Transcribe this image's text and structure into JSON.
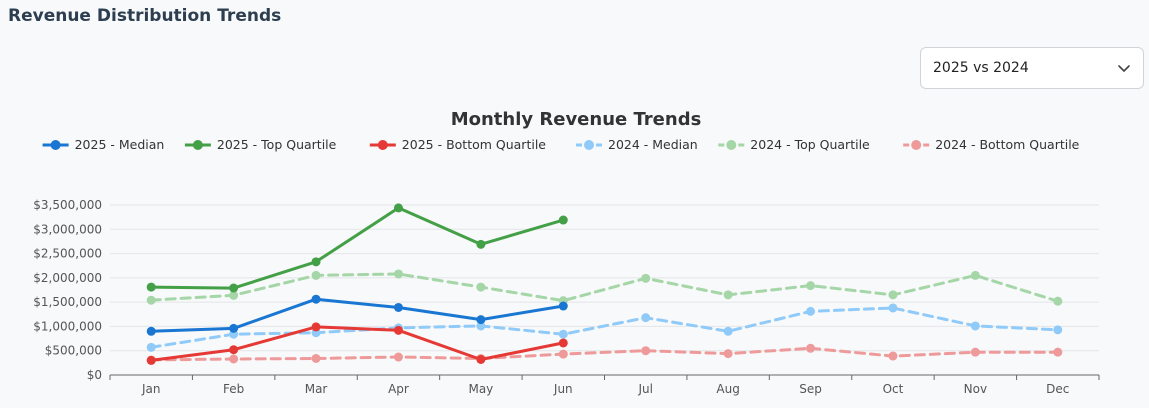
{
  "page": {
    "title": "Revenue Distribution Trends"
  },
  "comparison_select": {
    "value": "2025 vs 2024",
    "icon": "chevron-down-icon"
  },
  "chart_data": {
    "type": "line",
    "title": "Monthly Revenue Trends",
    "categories": [
      "Jan",
      "Feb",
      "Mar",
      "Apr",
      "May",
      "Jun",
      "Jul",
      "Aug",
      "Sep",
      "Oct",
      "Nov",
      "Dec"
    ],
    "ylim": [
      0,
      3500000
    ],
    "yticks": [
      0,
      500000,
      1000000,
      1500000,
      2000000,
      2500000,
      3000000,
      3500000
    ],
    "ytick_labels": [
      "$0",
      "$500,000",
      "$1,000,000",
      "$1,500,000",
      "$2,000,000",
      "$2,500,000",
      "$3,000,000",
      "$3,500,000"
    ],
    "grid": true,
    "legend_position": "top-center",
    "series": [
      {
        "name": "2025 - Median",
        "color": "#1976d2",
        "dashed": false,
        "values": [
          900000,
          960000,
          1560000,
          1390000,
          1140000,
          1420000,
          null,
          null,
          null,
          null,
          null,
          null
        ]
      },
      {
        "name": "2025 - Top Quartile",
        "color": "#43a047",
        "dashed": false,
        "values": [
          1810000,
          1790000,
          2330000,
          3440000,
          2690000,
          3190000,
          null,
          null,
          null,
          null,
          null,
          null
        ]
      },
      {
        "name": "2025 - Bottom Quartile",
        "color": "#e53935",
        "dashed": false,
        "values": [
          300000,
          520000,
          990000,
          920000,
          320000,
          660000,
          null,
          null,
          null,
          null,
          null,
          null
        ]
      },
      {
        "name": "2024 - Median",
        "color": "#90caf9",
        "dashed": true,
        "values": [
          570000,
          840000,
          870000,
          970000,
          1010000,
          840000,
          1180000,
          900000,
          1310000,
          1380000,
          1010000,
          930000
        ]
      },
      {
        "name": "2024 - Top Quartile",
        "color": "#a5d6a7",
        "dashed": true,
        "values": [
          1540000,
          1640000,
          2050000,
          2080000,
          1810000,
          1530000,
          1990000,
          1650000,
          1840000,
          1650000,
          2050000,
          1520000
        ]
      },
      {
        "name": "2024 - Bottom Quartile",
        "color": "#ef9a9a",
        "dashed": true,
        "values": [
          310000,
          330000,
          340000,
          370000,
          340000,
          430000,
          500000,
          440000,
          550000,
          390000,
          470000,
          470000
        ]
      }
    ]
  }
}
